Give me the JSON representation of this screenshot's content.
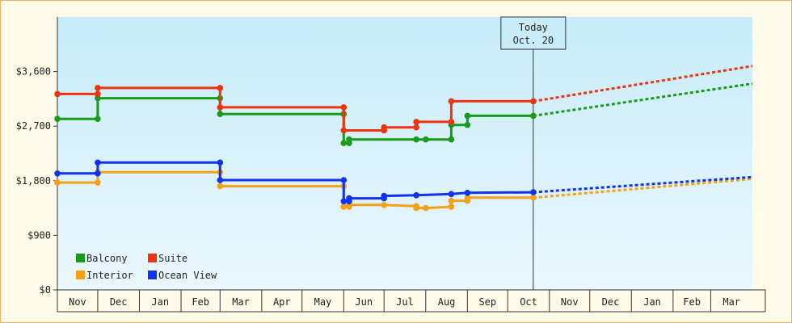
{
  "chart_data": {
    "type": "line",
    "title": "",
    "xlabel": "",
    "ylabel": "",
    "ylim": [
      0,
      4500
    ],
    "y_ticks": [
      0,
      900,
      1800,
      2700,
      3600
    ],
    "y_tick_labels": [
      "$0",
      "$900",
      "$1,800",
      "$2,700",
      "$3,600"
    ],
    "x_range": [
      "2019-11-01",
      "2021-04-01"
    ],
    "x_tick_labels": [
      "Nov",
      "Dec",
      "Jan",
      "Feb",
      "Mar",
      "Apr",
      "May",
      "Jun",
      "Jul",
      "Aug",
      "Sep",
      "Oct",
      "Nov",
      "Dec",
      "Jan",
      "Feb",
      "Mar"
    ],
    "month_boundaries": [
      "2019-11-01",
      "2019-12-01",
      "2020-01-01",
      "2020-02-01",
      "2020-03-01",
      "2020-04-01",
      "2020-05-01",
      "2020-06-01",
      "2020-07-01",
      "2020-08-01",
      "2020-09-01",
      "2020-10-01",
      "2020-11-01",
      "2020-12-01",
      "2021-01-01",
      "2021-02-01",
      "2021-03-01",
      "2021-04-01"
    ],
    "grid": false,
    "legend_placement": "bottom-left",
    "today": {
      "label_line1": "Today",
      "label_line2": "Oct. 20",
      "date": "2020-10-20"
    },
    "series": [
      {
        "name": "Balcony",
        "color": "#1a9a1a",
        "points": [
          [
            "2019-11-01",
            2820
          ],
          [
            "2019-12-01",
            2820
          ],
          [
            "2019-12-01",
            3160
          ],
          [
            "2020-03-01",
            3160
          ],
          [
            "2020-03-01",
            2900
          ],
          [
            "2020-06-01",
            2900
          ],
          [
            "2020-06-01",
            2420
          ],
          [
            "2020-06-05",
            2420
          ],
          [
            "2020-06-05",
            2480
          ],
          [
            "2020-07-25",
            2480
          ],
          [
            "2020-08-01",
            2480
          ],
          [
            "2020-08-20",
            2480
          ],
          [
            "2020-08-20",
            2720
          ],
          [
            "2020-09-01",
            2720
          ],
          [
            "2020-09-01",
            2870
          ],
          [
            "2020-10-20",
            2870
          ]
        ],
        "forecast": [
          [
            "2020-10-20",
            2870
          ],
          [
            "2021-04-01",
            3400
          ]
        ]
      },
      {
        "name": "Suite",
        "color": "#ee3311",
        "points": [
          [
            "2019-11-01",
            3230
          ],
          [
            "2019-12-01",
            3230
          ],
          [
            "2019-12-01",
            3330
          ],
          [
            "2020-03-01",
            3330
          ],
          [
            "2020-03-01",
            3010
          ],
          [
            "2020-06-01",
            3010
          ],
          [
            "2020-06-01",
            2630
          ],
          [
            "2020-07-01",
            2630
          ],
          [
            "2020-07-01",
            2680
          ],
          [
            "2020-07-25",
            2680
          ],
          [
            "2020-07-25",
            2770
          ],
          [
            "2020-08-20",
            2770
          ],
          [
            "2020-08-20",
            3110
          ],
          [
            "2020-10-20",
            3110
          ]
        ],
        "forecast": [
          [
            "2020-10-20",
            3110
          ],
          [
            "2021-04-01",
            3690
          ]
        ]
      },
      {
        "name": "Interior",
        "color": "#f5a015",
        "points": [
          [
            "2019-11-01",
            1770
          ],
          [
            "2019-12-01",
            1770
          ],
          [
            "2019-12-01",
            1940
          ],
          [
            "2020-03-01",
            1940
          ],
          [
            "2020-03-01",
            1710
          ],
          [
            "2020-06-01",
            1710
          ],
          [
            "2020-06-01",
            1370
          ],
          [
            "2020-06-05",
            1370
          ],
          [
            "2020-06-05",
            1400
          ],
          [
            "2020-07-01",
            1400
          ],
          [
            "2020-07-25",
            1380
          ],
          [
            "2020-07-25",
            1350
          ],
          [
            "2020-08-01",
            1350
          ],
          [
            "2020-08-20",
            1370
          ],
          [
            "2020-08-20",
            1470
          ],
          [
            "2020-09-01",
            1470
          ],
          [
            "2020-09-01",
            1520
          ],
          [
            "2020-10-20",
            1520
          ]
        ],
        "forecast": [
          [
            "2020-10-20",
            1520
          ],
          [
            "2021-04-01",
            1830
          ]
        ]
      },
      {
        "name": "Ocean View",
        "color": "#1133ee",
        "points": [
          [
            "2019-11-01",
            1920
          ],
          [
            "2019-12-01",
            1920
          ],
          [
            "2019-12-01",
            2100
          ],
          [
            "2020-03-01",
            2100
          ],
          [
            "2020-03-01",
            1810
          ],
          [
            "2020-06-01",
            1810
          ],
          [
            "2020-06-01",
            1460
          ],
          [
            "2020-06-05",
            1460
          ],
          [
            "2020-06-05",
            1510
          ],
          [
            "2020-07-01",
            1510
          ],
          [
            "2020-07-01",
            1550
          ],
          [
            "2020-07-25",
            1560
          ],
          [
            "2020-08-20",
            1580
          ],
          [
            "2020-09-01",
            1600
          ],
          [
            "2020-10-20",
            1610
          ]
        ],
        "forecast": [
          [
            "2020-10-20",
            1610
          ],
          [
            "2021-04-01",
            1860
          ]
        ]
      }
    ]
  }
}
